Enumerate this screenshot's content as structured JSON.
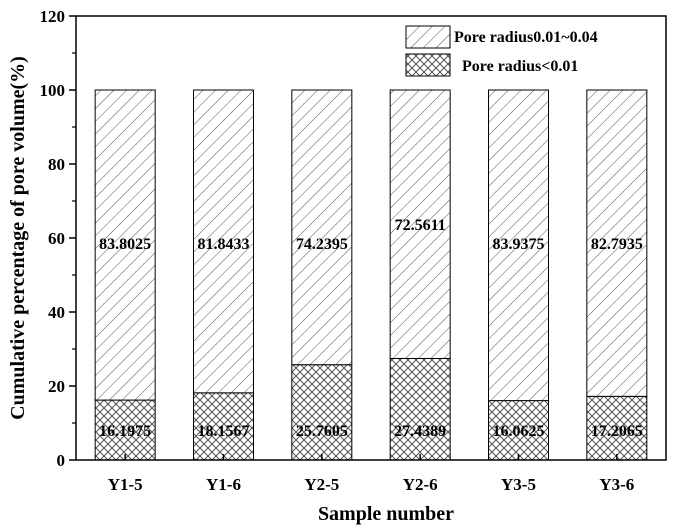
{
  "chart_data": {
    "type": "bar",
    "stacked": true,
    "categories": [
      "Y1-5",
      "Y1-6",
      "Y2-5",
      "Y2-6",
      "Y3-5",
      "Y3-6"
    ],
    "series": [
      {
        "name": "Pore radius<0.01",
        "pattern": "crosshatch",
        "values": [
          16.1975,
          18.1567,
          25.7605,
          27.4389,
          16.0625,
          17.2065
        ]
      },
      {
        "name": "Pore radius0.01~0.04",
        "pattern": "diagonal",
        "values": [
          83.8025,
          81.8433,
          74.2395,
          72.5611,
          83.9375,
          82.7935
        ]
      }
    ],
    "data_labels": {
      "bottom": [
        "16.1975",
        "18.1567",
        "25.7605",
        "27.4389",
        "16.0625",
        "17.2065"
      ],
      "top": [
        "83.8025",
        "81.8433",
        "74.2395",
        "72.5611",
        "83.9375",
        "82.7935"
      ]
    },
    "legend_entries": [
      "Pore radius0.01~0.04",
      "Pore radius<0.01"
    ],
    "xlabel": "Sample number",
    "ylabel": "Cumulative percentage of pore volume(%)",
    "ylim": [
      0,
      120
    ],
    "yticks": [
      "0",
      "20",
      "40",
      "60",
      "80",
      "100",
      "120"
    ],
    "grid": false,
    "legend_position": "top-right"
  }
}
